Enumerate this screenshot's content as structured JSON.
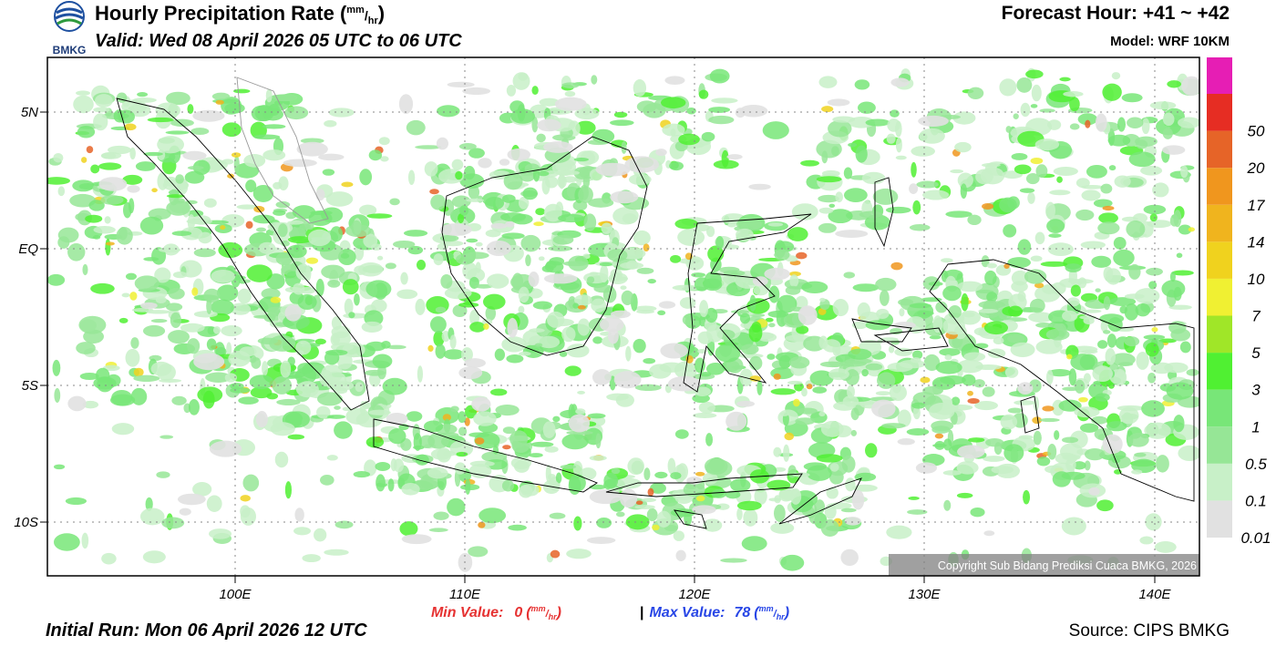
{
  "header": {
    "logo_text": "BMKG",
    "title": "Hourly Precipitation Rate (",
    "title_close": ")",
    "unit_num": "mm",
    "unit_den": "hr",
    "valid": "Valid: Wed 08 April 2026 05 UTC to 06 UTC",
    "forecast_hour": "Forecast Hour: +41 ~ +42",
    "model": "Model: WRF 10KM"
  },
  "axes": {
    "lat_labels": [
      "5N",
      "EQ",
      "5S",
      "10S"
    ],
    "lon_labels": [
      "100E",
      "110E",
      "120E",
      "130E",
      "140E"
    ]
  },
  "colorbar": {
    "labels": [
      0.01,
      0.1,
      0.5,
      1,
      3,
      5,
      7,
      10,
      14,
      17,
      20,
      50
    ],
    "colors": [
      "#e1e1e1",
      "#c8f0c8",
      "#96e696",
      "#78e678",
      "#50f032",
      "#a0e628",
      "#f0f032",
      "#f0d21e",
      "#f0b41e",
      "#f0961e",
      "#e66428",
      "#e62d23",
      "#e61eb4"
    ]
  },
  "footer": {
    "min_label": "Min Value:",
    "min_value": 0,
    "unit_open": "(",
    "unit_close": ")",
    "separator": "|",
    "max_label": "Max Value:",
    "max_value": 78,
    "initial_run": "Initial Run: Mon 06 April 2026 12 UTC",
    "source": "Source: CIPS BMKG",
    "copyright": "Copyright Sub Bidang Prediksi Cuaca BMKG, 2026"
  }
}
